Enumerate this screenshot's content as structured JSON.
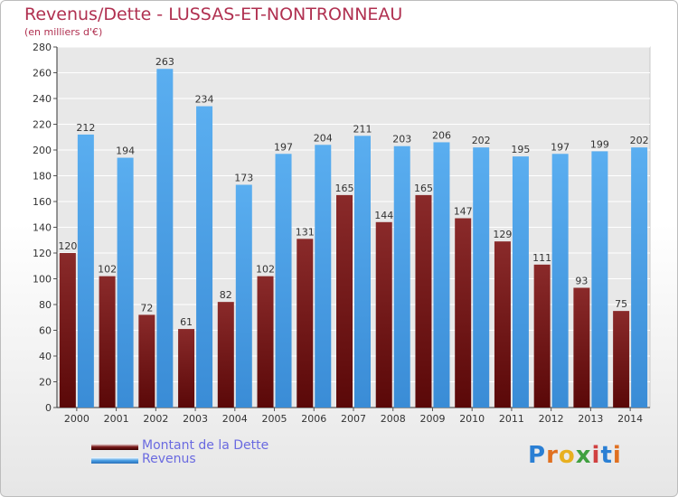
{
  "chart_data": {
    "type": "bar",
    "title": "Revenus/Dette - LUSSAS-ET-NONTRONNEAU",
    "subtitle": "(en milliers d'€)",
    "categories": [
      "2000",
      "2001",
      "2002",
      "2003",
      "2004",
      "2005",
      "2006",
      "2007",
      "2008",
      "2009",
      "2010",
      "2011",
      "2012",
      "2013",
      "2014"
    ],
    "series": [
      {
        "name": "Montant de la Dette",
        "color": "#7a1a1a",
        "values": [
          120,
          102,
          72,
          61,
          82,
          102,
          131,
          165,
          144,
          165,
          147,
          129,
          111,
          93,
          75
        ]
      },
      {
        "name": "Revenus",
        "color": "#4aa0e6",
        "values": [
          212,
          194,
          263,
          234,
          173,
          197,
          204,
          211,
          203,
          206,
          202,
          195,
          197,
          199,
          202
        ]
      }
    ],
    "ylim": [
      0,
      280
    ],
    "yticks": [
      0,
      20,
      40,
      60,
      80,
      100,
      120,
      140,
      160,
      180,
      200,
      220,
      240,
      260,
      280
    ],
    "grid": true,
    "legend_position": "bottom-left"
  },
  "logo": {
    "letters": [
      "P",
      "r",
      "o",
      "x",
      "i",
      "t",
      "i"
    ],
    "colors": [
      "#2a7fd4",
      "#e07020",
      "#e8b020",
      "#40a040",
      "#d04040",
      "#2a7fd4",
      "#e07020"
    ]
  }
}
